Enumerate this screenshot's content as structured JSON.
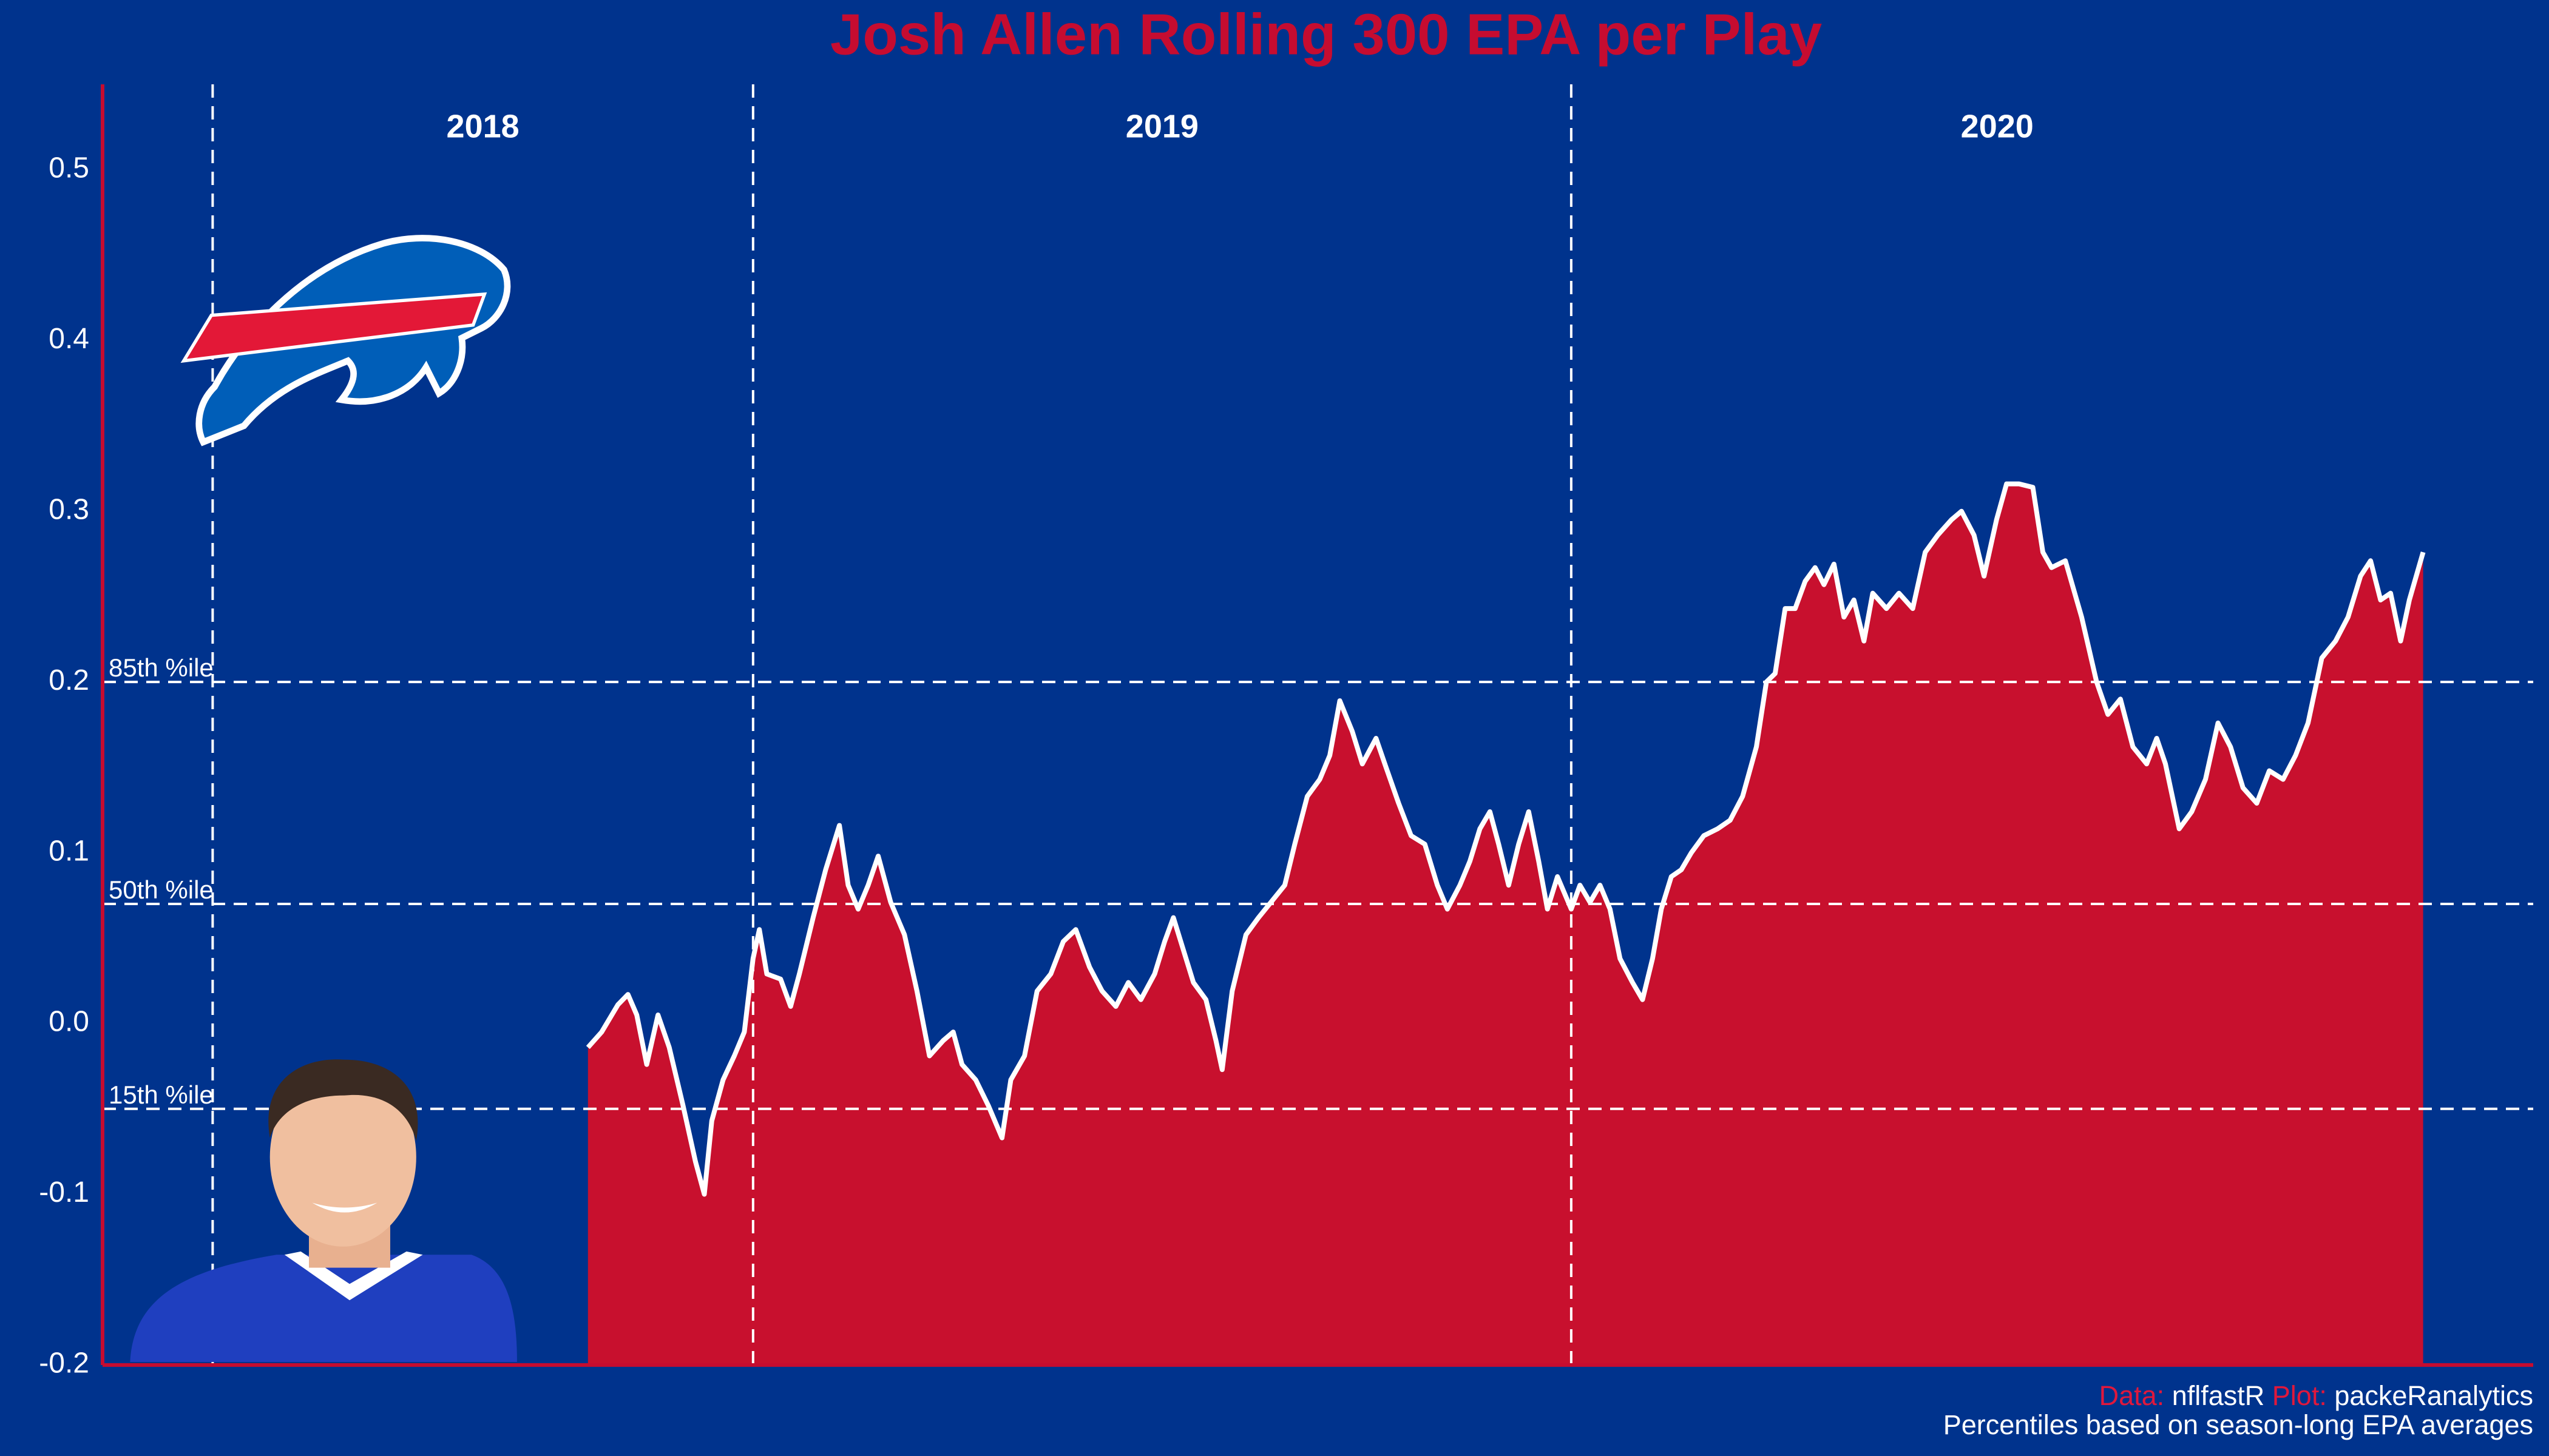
{
  "chart_data": {
    "type": "area",
    "title": "Josh Allen Rolling 300 EPA per Play",
    "x": [
      300,
      311,
      324,
      332,
      339,
      347,
      356,
      365,
      376,
      386,
      393,
      399,
      408,
      417,
      425,
      432,
      437,
      443,
      454,
      462,
      469,
      480,
      490,
      501,
      508,
      516,
      524,
      532,
      542,
      553,
      563,
      573,
      584,
      592,
      599,
      610,
      620,
      631,
      638,
      649,
      659,
      670,
      680,
      690,
      701,
      711,
      722,
      732,
      742,
      753,
      761,
      768,
      776,
      784,
      794,
      802,
      807,
      815,
      826,
      836,
      846,
      857,
      865,
      875,
      885,
      893,
      901,
      911,
      919,
      930,
      937,
      948,
      958,
      969,
      979,
      987,
      997,
      1005,
      1013,
      1021,
      1028,
      1036,
      1044,
      1052,
      1060,
      1067,
      1075,
      1086,
      1093,
      1101,
      1109,
      1117,
      1125,
      1135,
      1143,
      1151,
      1158,
      1166,
      1174,
      1182,
      1192,
      1203,
      1213,
      1223,
      1234,
      1242,
      1249,
      1257,
      1265,
      1273,
      1281,
      1288,
      1296,
      1304,
      1312,
      1320,
      1327,
      1338,
      1348,
      1359,
      1369,
      1379,
      1390,
      1398,
      1408,
      1416,
      1426,
      1434,
      1444,
      1455,
      1463,
      1470,
      1481,
      1494,
      1506,
      1515,
      1525,
      1535,
      1546,
      1554,
      1561,
      1572,
      1582,
      1593,
      1603,
      1613,
      1623,
      1634,
      1644,
      1655,
      1665,
      1675,
      1686,
      1697,
      1707,
      1717,
      1725,
      1733,
      1741,
      1749,
      1756,
      1767
    ],
    "values": [
      -0.014,
      -0.005,
      0.011,
      0.017,
      0.005,
      -0.024,
      0.005,
      -0.014,
      -0.048,
      -0.081,
      -0.1,
      -0.057,
      -0.033,
      -0.019,
      -0.005,
      0.038,
      0.055,
      0.029,
      0.026,
      0.01,
      0.029,
      0.062,
      0.09,
      0.116,
      0.081,
      0.067,
      0.081,
      0.098,
      0.071,
      0.052,
      0.019,
      -0.019,
      -0.01,
      -0.005,
      -0.024,
      -0.033,
      -0.048,
      -0.067,
      -0.033,
      -0.019,
      0.019,
      0.029,
      0.048,
      0.055,
      0.033,
      0.019,
      0.01,
      0.024,
      0.014,
      0.029,
      0.048,
      0.062,
      0.043,
      0.024,
      0.014,
      -0.01,
      -0.027,
      0.019,
      0.052,
      0.062,
      0.071,
      0.081,
      0.105,
      0.133,
      0.143,
      0.157,
      0.189,
      0.171,
      0.152,
      0.167,
      0.152,
      0.129,
      0.11,
      0.105,
      0.081,
      0.067,
      0.081,
      0.095,
      0.114,
      0.124,
      0.105,
      0.081,
      0.105,
      0.124,
      0.095,
      0.067,
      0.086,
      0.067,
      0.081,
      0.071,
      0.081,
      0.067,
      0.038,
      0.024,
      0.014,
      0.038,
      0.067,
      0.086,
      0.09,
      0.1,
      0.11,
      0.114,
      0.119,
      0.133,
      0.162,
      0.2,
      0.205,
      0.243,
      0.243,
      0.259,
      0.267,
      0.257,
      0.269,
      0.238,
      0.248,
      0.224,
      0.252,
      0.243,
      0.252,
      0.243,
      0.276,
      0.286,
      0.295,
      0.3,
      0.286,
      0.262,
      0.295,
      0.316,
      0.316,
      0.314,
      0.276,
      0.267,
      0.271,
      0.238,
      0.2,
      0.181,
      0.19,
      0.162,
      0.152,
      0.167,
      0.152,
      0.114,
      0.124,
      0.143,
      0.176,
      0.162,
      0.138,
      0.129,
      0.148,
      0.143,
      0.157,
      0.176,
      0.214,
      0.224,
      0.238,
      0.262,
      0.271,
      0.248,
      0.252,
      0.224,
      0.248,
      0.276
    ],
    "color": "#c8102e",
    "line_color": "#ffffff",
    "xlim": [
      -88,
      1855
    ],
    "ylim": [
      -0.2,
      0.55
    ],
    "yticks": [
      -0.2,
      -0.1,
      {
        "value": 0,
        "label": "0.0"
      },
      0.1,
      0.2,
      0.3,
      0.4,
      0.5
    ],
    "grid": false,
    "seasons": [
      {
        "label": "2018",
        "start": 0
      },
      {
        "label": "2019",
        "start": 432
      },
      {
        "label": "2020",
        "start": 1086
      }
    ],
    "reference_lines": [
      {
        "value": 0.2,
        "label": "85th %ile"
      },
      {
        "value": 0.07,
        "label": "50th %ile"
      },
      {
        "value": -0.05,
        "label": "15th %ile"
      }
    ],
    "caption": {
      "data_label": "Data:",
      "data": "nflfastR",
      "plot_label": "Plot:",
      "plot": "packeRanalytics",
      "note": "Percentiles based on season-long EPA averages"
    }
  }
}
